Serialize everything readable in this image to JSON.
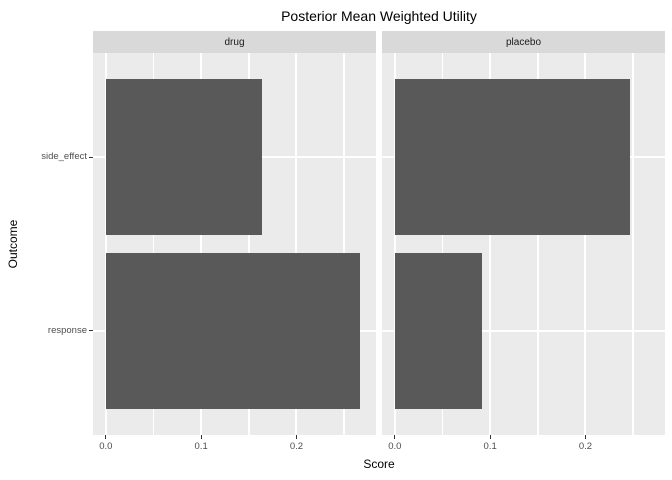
{
  "chart_data": {
    "type": "bar",
    "orientation": "horizontal",
    "title": "Posterior Mean Weighted Utility",
    "xlabel": "Score",
    "ylabel": "Outcome",
    "categories": [
      "side_effect",
      "response"
    ],
    "facets": [
      {
        "label": "drug",
        "values": {
          "side_effect": 0.164,
          "response": 0.267
        }
      },
      {
        "label": "placebo",
        "values": {
          "side_effect": 0.247,
          "response": 0.091
        }
      }
    ],
    "x_ticks": [
      0.0,
      0.1,
      0.2
    ],
    "x_tick_labels": [
      "0.0",
      "0.1",
      "0.2"
    ],
    "x_minor_ticks": [
      0.05,
      0.15,
      0.25
    ],
    "xlim": [
      -0.0135,
      0.2835
    ],
    "legend": "none",
    "grid": "on",
    "colors": {
      "bar": "#595959",
      "panel_background": "#EBEBEB",
      "strip_background": "#D9D9D9",
      "gridline": "#FFFFFF",
      "tick": "#333333",
      "tick_label": "#4D4D4D",
      "text": "#000000",
      "plot_background": "#FFFFFF"
    }
  }
}
